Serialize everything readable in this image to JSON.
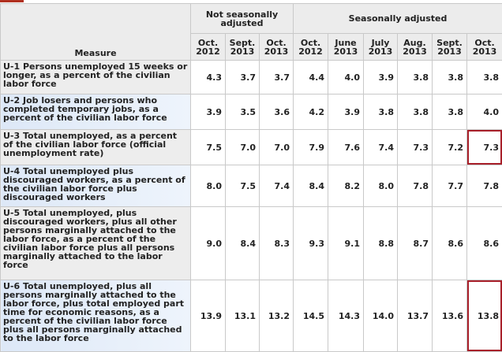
{
  "table": {
    "header": {
      "measure": "Measure",
      "groups": [
        "Not seasonally adjusted",
        "Seasonally adjusted"
      ],
      "columns": [
        "Oct. 2012",
        "Sept. 2013",
        "Oct. 2013",
        "Oct. 2012",
        "June 2013",
        "July 2013",
        "Aug. 2013",
        "Sept. 2013",
        "Oct. 2013"
      ]
    },
    "rows": [
      {
        "measure": "U-1 Persons unemployed 15 weeks or longer, as a percent of the civilian labor force",
        "values": [
          "4.3",
          "3.7",
          "3.7",
          "4.4",
          "4.0",
          "3.9",
          "3.8",
          "3.8",
          "3.8"
        ]
      },
      {
        "measure": "U-2 Job losers and persons who completed temporary jobs, as a percent of the civilian labor force",
        "values": [
          "3.9",
          "3.5",
          "3.6",
          "4.2",
          "3.9",
          "3.8",
          "3.8",
          "3.8",
          "4.0"
        ]
      },
      {
        "measure": "U-3 Total unemployed, as a percent of the civilian labor force (official unemployment rate)",
        "values": [
          "7.5",
          "7.0",
          "7.0",
          "7.9",
          "7.6",
          "7.4",
          "7.3",
          "7.2",
          "7.3"
        ]
      },
      {
        "measure": "U-4 Total unemployed plus discouraged workers, as a percent of the civilian labor force plus discouraged workers",
        "values": [
          "8.0",
          "7.5",
          "7.4",
          "8.4",
          "8.2",
          "8.0",
          "7.8",
          "7.7",
          "7.8"
        ]
      },
      {
        "measure": "U-5 Total unemployed, plus discouraged workers, plus all other persons marginally attached to the labor force, as a percent of the civilian labor force plus all persons marginally attached to the labor force",
        "values": [
          "9.0",
          "8.4",
          "8.3",
          "9.3",
          "9.1",
          "8.8",
          "8.7",
          "8.6",
          "8.6"
        ]
      },
      {
        "measure": "U-6 Total unemployed, plus all persons marginally attached to the labor force, plus total employed part time for economic reasons, as a percent of the civilian labor force plus all persons marginally attached to the labor force",
        "values": [
          "13.9",
          "13.1",
          "13.2",
          "14.5",
          "14.3",
          "14.0",
          "13.7",
          "13.6",
          "13.8"
        ]
      }
    ]
  }
}
